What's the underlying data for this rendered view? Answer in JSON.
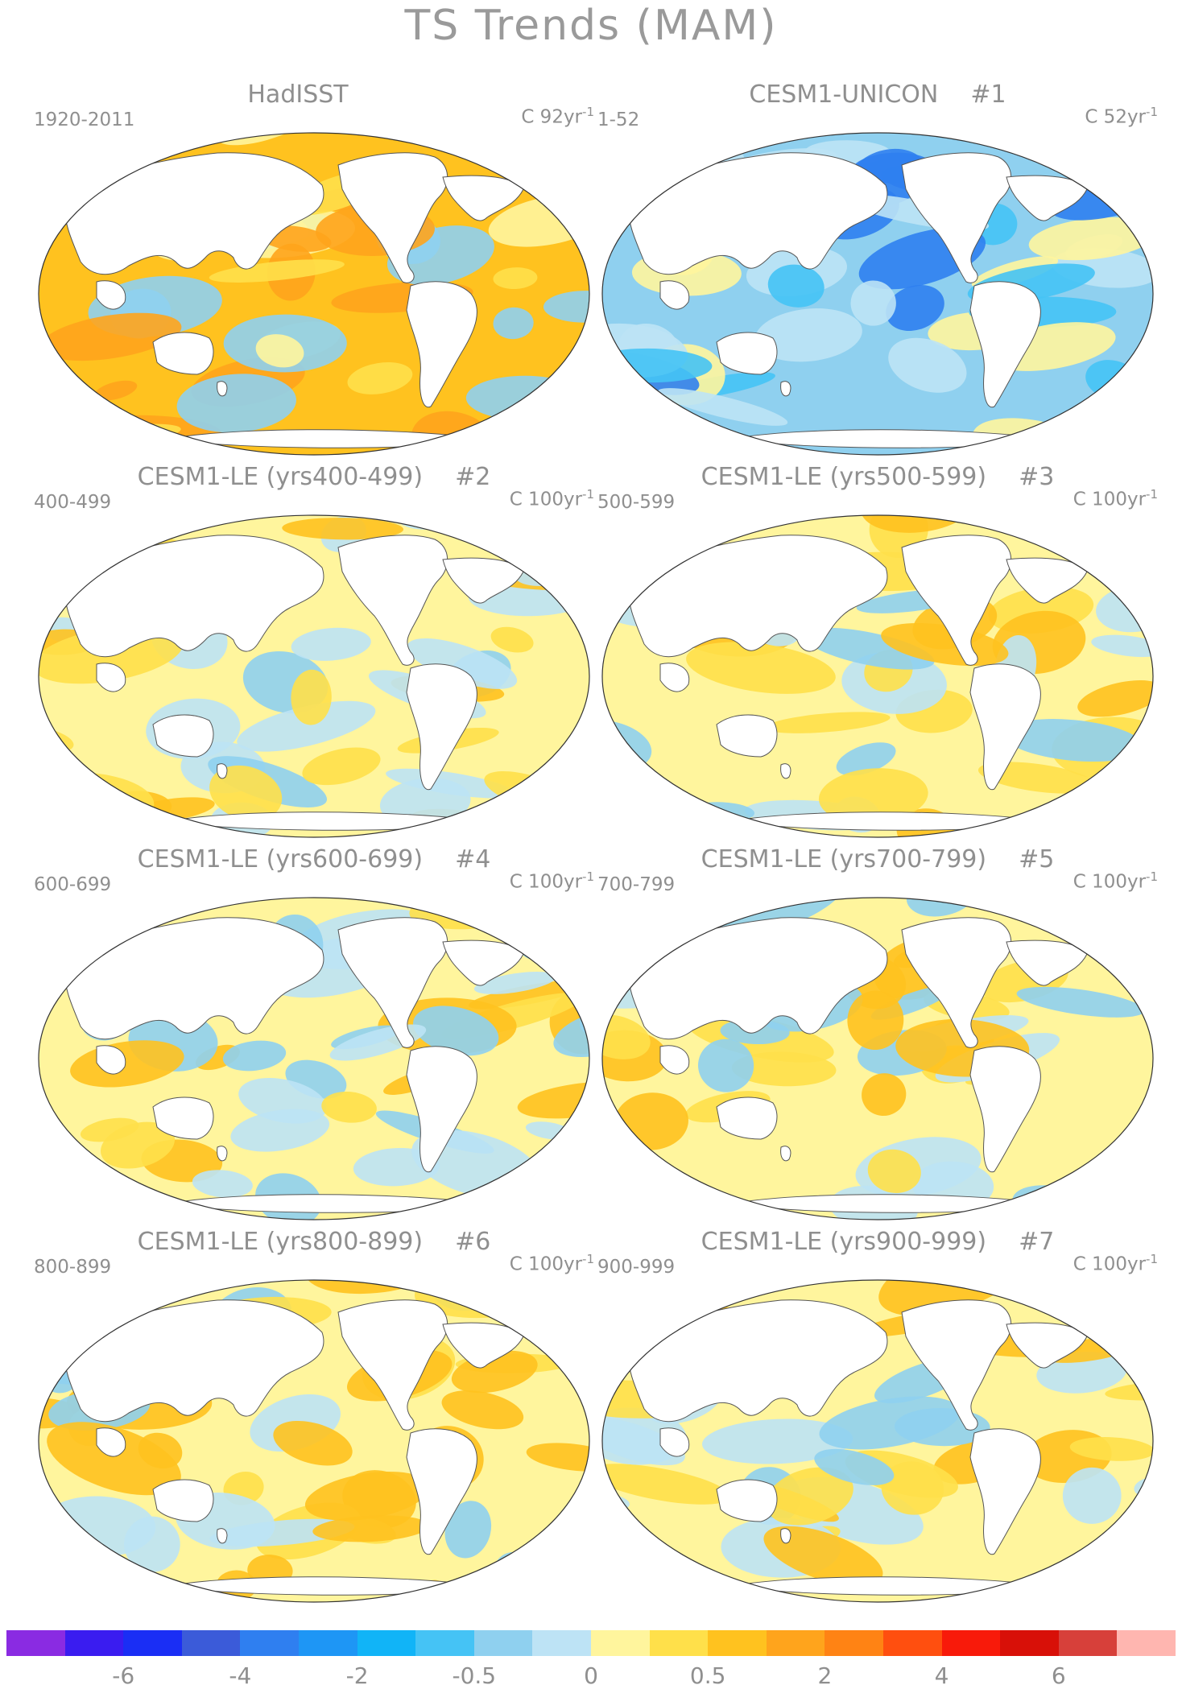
{
  "title": "TS Trends (MAM)",
  "panels": [
    {
      "title": "HadISST",
      "tag": "",
      "period": "1920-2011",
      "units_prefix": "C 92yr",
      "units_exp": "-1",
      "palette": "warm"
    },
    {
      "title": "CESM1-UNICON",
      "tag": "#1",
      "period": "1-52",
      "units_prefix": "C 52yr",
      "units_exp": "-1",
      "palette": "cool"
    },
    {
      "title": "CESM1-LE (yrs400-499)",
      "tag": "#2",
      "period": "400-499",
      "units_prefix": "C 100yr",
      "units_exp": "-1",
      "palette": "mixed"
    },
    {
      "title": "CESM1-LE (yrs500-599)",
      "tag": "#3",
      "period": "500-599",
      "units_prefix": "C 100yr",
      "units_exp": "-1",
      "palette": "mixed"
    },
    {
      "title": "CESM1-LE (yrs600-699)",
      "tag": "#4",
      "period": "600-699",
      "units_prefix": "C 100yr",
      "units_exp": "-1",
      "palette": "mixed"
    },
    {
      "title": "CESM1-LE (yrs700-799)",
      "tag": "#5",
      "period": "700-799",
      "units_prefix": "C 100yr",
      "units_exp": "-1",
      "palette": "mixed"
    },
    {
      "title": "CESM1-LE (yrs800-899)",
      "tag": "#6",
      "period": "800-899",
      "units_prefix": "C 100yr",
      "units_exp": "-1",
      "palette": "mixed"
    },
    {
      "title": "CESM1-LE (yrs900-999)",
      "tag": "#7",
      "period": "900-999",
      "units_prefix": "C 100yr",
      "units_exp": "-1",
      "palette": "mixed"
    }
  ],
  "colorbar": {
    "colors": [
      "#8a2be2",
      "#3a1cf0",
      "#1a2ef5",
      "#3b5bd9",
      "#2f7ff0",
      "#1e96f5",
      "#11b4f7",
      "#45c3f5",
      "#8fd0ef",
      "#bde3f5",
      "#fff59d",
      "#ffe04a",
      "#ffc21f",
      "#ffa41c",
      "#ff8314",
      "#ff4f0f",
      "#f81a0a",
      "#d81008",
      "#d7403a",
      "#ffb6b0"
    ],
    "labels": [
      "-6",
      "-4",
      "-2",
      "-0.5",
      "0",
      "0.5",
      "2",
      "4",
      "6"
    ]
  },
  "palettes": {
    "warm": [
      "#ffc21f",
      "#ffe04a",
      "#ffa41c",
      "#fff59d",
      "#8fd0ef"
    ],
    "cool": [
      "#8fd0ef",
      "#45c3f5",
      "#bde3f5",
      "#2f7ff0",
      "#fff59d"
    ],
    "mixed": [
      "#fff59d",
      "#bde3f5",
      "#ffe04a",
      "#8fd0ef",
      "#ffc21f"
    ]
  }
}
